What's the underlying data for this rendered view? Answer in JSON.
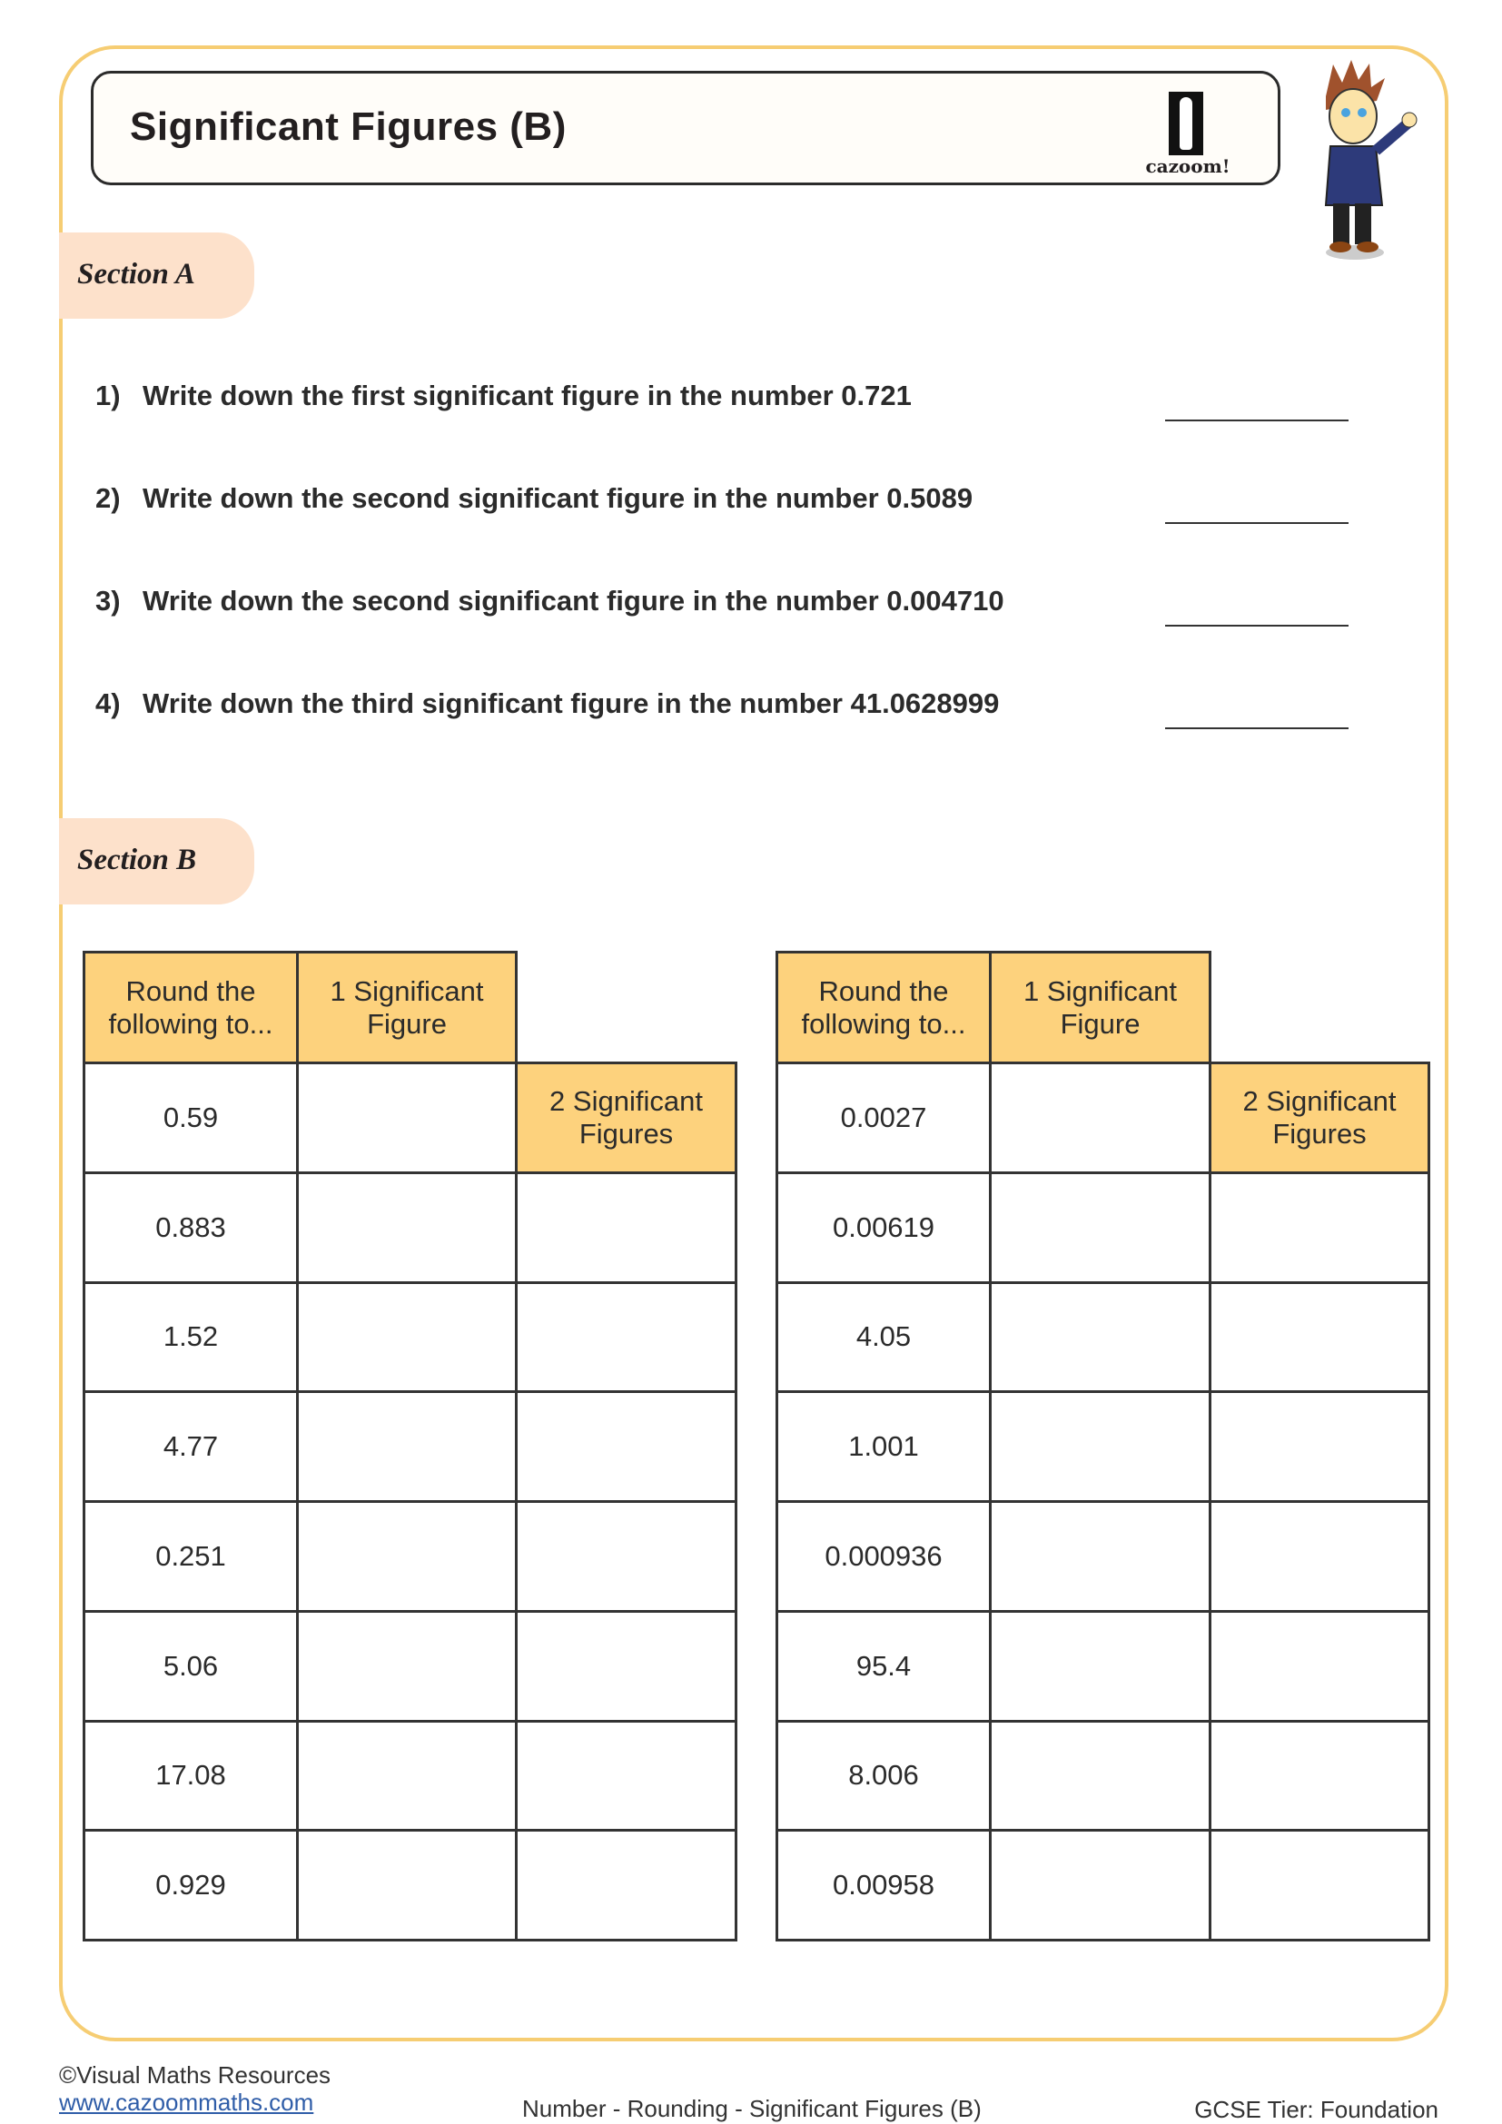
{
  "header": {
    "title": "Significant Figures (B)",
    "logo_text": "cazoom!"
  },
  "section_a": {
    "label": "Section A",
    "questions": [
      {
        "number": "1)",
        "text": "Write down the first significant figure in the number 0.721"
      },
      {
        "number": "2)",
        "text": "Write down the second significant figure in the number 0.5089"
      },
      {
        "number": "3)",
        "text": "Write down the second significant figure in the number 0.004710"
      },
      {
        "number": "4)",
        "text": "Write down the third significant figure in the number 41.0628999"
      }
    ]
  },
  "section_b": {
    "label": "Section B",
    "headers": {
      "round": "Round the following to...",
      "sf1": "1 Significant Figure",
      "sf2": "2 Significant Figures"
    },
    "tables": [
      {
        "values": [
          "0.59",
          "0.883",
          "1.52",
          "4.77",
          "0.251",
          "5.06",
          "17.08",
          "0.929"
        ]
      },
      {
        "values": [
          "0.0027",
          "0.00619",
          "4.05",
          "1.001",
          "0.000936",
          "95.4",
          "8.006",
          "0.00958"
        ]
      }
    ]
  },
  "footer": {
    "copyright": "©Visual Maths Resources",
    "link": "www.cazoommaths.com",
    "topic": "Number - Rounding - Significant Figures (B)",
    "tier": "GCSE Tier: Foundation"
  },
  "colors": {
    "frame": "#f6cd73",
    "header_fill": "#fdd27d",
    "section_tab": "#fde1cb"
  }
}
